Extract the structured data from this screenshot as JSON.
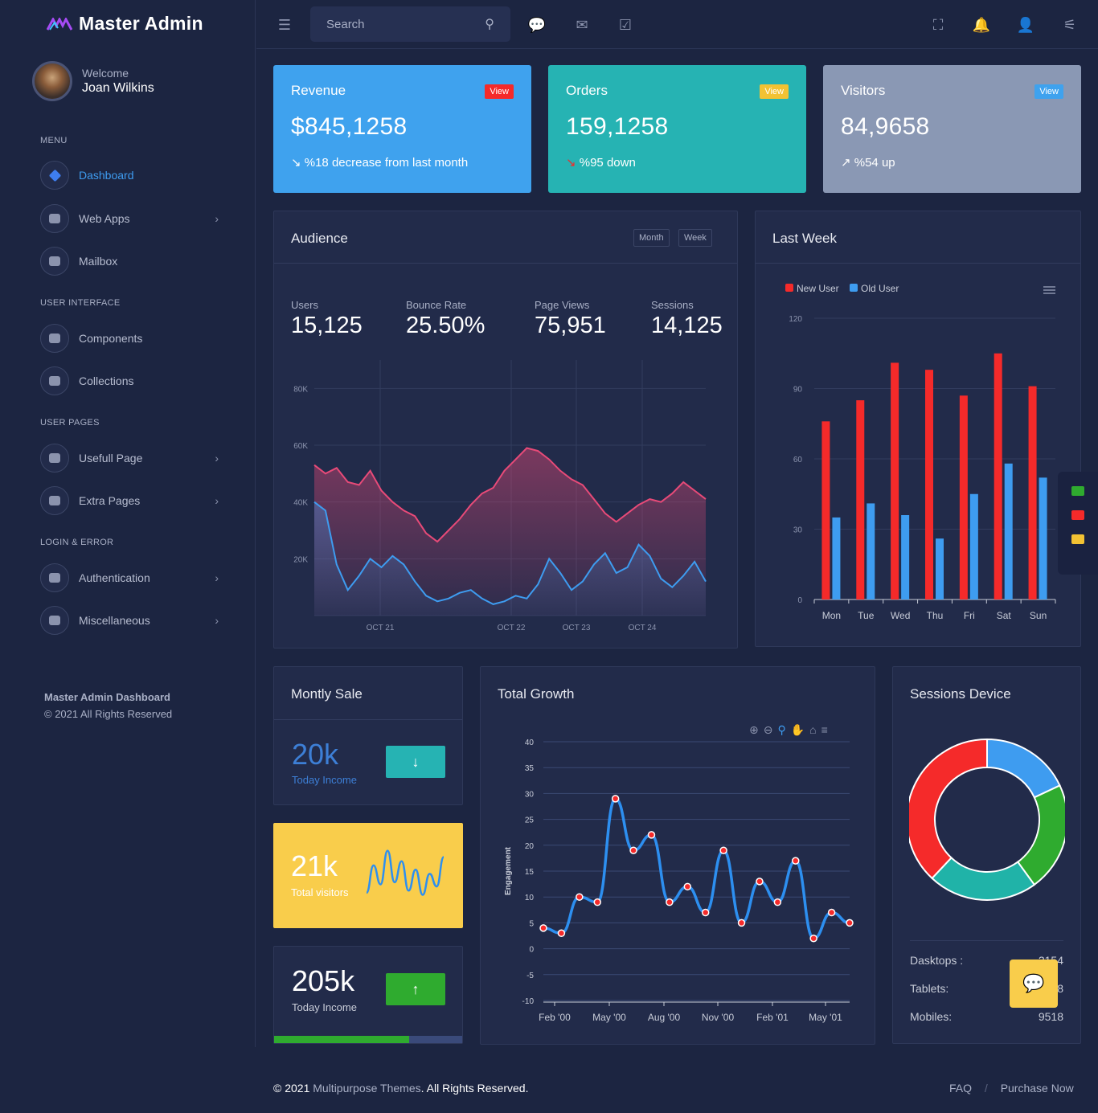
{
  "brand": {
    "name": "Master Admin"
  },
  "user": {
    "welcome": "Welcome",
    "name": "Joan Wilkins"
  },
  "sidebar": {
    "sections": [
      "MENU",
      "USER INTERFACE",
      "USER PAGES",
      "LOGIN & ERROR"
    ],
    "items": [
      {
        "label": "Dashboard",
        "icon": "layers-icon"
      },
      {
        "label": "Web Apps",
        "icon": "apps-icon"
      },
      {
        "label": "Mailbox",
        "icon": "mailbox-icon"
      },
      {
        "label": "Components",
        "icon": "components-icon"
      },
      {
        "label": "Collections",
        "icon": "collections-icon"
      },
      {
        "label": "Usefull Page",
        "icon": "users-icon"
      },
      {
        "label": "Extra Pages",
        "icon": "pages-icon"
      },
      {
        "label": "Authentication",
        "icon": "authentication-icon"
      },
      {
        "label": "Miscellaneous",
        "icon": "warning-icon"
      }
    ],
    "footer_title": "Master Admin Dashboard",
    "footer_copy": "© 2021 All Rights Reserved"
  },
  "search": {
    "placeholder": "Search"
  },
  "stats": [
    {
      "title": "Revenue",
      "badge": "View",
      "value": "$845,1258",
      "sub": "%18 decrease from last month",
      "color": "#3fa2ee",
      "badge_color": "#f52a2a"
    },
    {
      "title": "Orders",
      "badge": "View",
      "value": "159,1258",
      "sub": "%95 down",
      "color": "#26b3b3",
      "badge_color": "#f2c233"
    },
    {
      "title": "Visitors",
      "badge": "View",
      "value": "84,9658",
      "sub": "%54 up",
      "color": "#8a98b4",
      "badge_color": "#3fa2ee"
    }
  ],
  "audience": {
    "title": "Audience",
    "month_label": "Month",
    "week_label": "Week",
    "kpis": [
      {
        "label": "Users",
        "value": "15,125"
      },
      {
        "label": "Bounce Rate",
        "value": "25.50%"
      },
      {
        "label": "Page Views",
        "value": "75,951"
      },
      {
        "label": "Sessions",
        "value": "14,125"
      }
    ]
  },
  "last_week": {
    "title": "Last Week"
  },
  "monthly_sale": {
    "title": "Montly Sale",
    "a_value": "20k",
    "a_label": "Today Income",
    "b_value": "21k",
    "b_label": "Total visitors",
    "c_value": "205k",
    "c_label": "Today Income",
    "c_progress": 0.72
  },
  "total_growth": {
    "title": "Total Growth"
  },
  "sessions_device": {
    "title": "Sessions Device",
    "rows": [
      {
        "label": "Dasktops :",
        "value": "2154"
      },
      {
        "label": "Tablets:",
        "value": "3698"
      },
      {
        "label": "Mobiles:",
        "value": "9518"
      }
    ]
  },
  "footer": {
    "copy_prefix": "© 2021",
    "link": "Multipurpose Themes",
    "copy_suffix": ". All Rights Reserved.",
    "faq": "FAQ",
    "sep": "/",
    "purchase": "Purchase Now"
  },
  "chart_data": [
    {
      "type": "area",
      "x_tick_labels": [
        "OCT 21",
        "OCT 22",
        "OCT 23",
        "OCT 24"
      ],
      "y_tick_labels": [
        "20K",
        "40K",
        "60K",
        "80K"
      ],
      "ylim": [
        0,
        90000
      ],
      "series": [
        {
          "values": [
            53000,
            50000,
            52000,
            47000,
            46000,
            51000,
            44000,
            40000,
            37000,
            35000,
            29000,
            26000,
            30000,
            34000,
            39000,
            43000,
            45000,
            51000,
            55000,
            59000,
            58000,
            55000,
            51000,
            48000,
            46000,
            41000,
            36000,
            33000,
            36000,
            39000,
            41000,
            40000,
            43000,
            47000,
            44000,
            41000
          ],
          "color": "#e84a78"
        },
        {
          "values": [
            40000,
            37000,
            18000,
            9000,
            14000,
            20000,
            17000,
            21000,
            18000,
            12000,
            7000,
            5000,
            6000,
            8000,
            9000,
            6000,
            4000,
            5000,
            7000,
            6000,
            11000,
            20000,
            15000,
            9000,
            12000,
            18000,
            22000,
            15000,
            17000,
            25000,
            21000,
            13000,
            10000,
            14000,
            19000,
            12000
          ],
          "color": "#3e9cf0"
        }
      ]
    },
    {
      "type": "bar",
      "categories": [
        "Mon",
        "Tue",
        "Wed",
        "Thu",
        "Fri",
        "Sat",
        "Sun"
      ],
      "ylim": [
        0,
        120
      ],
      "y_ticks": [
        0,
        30,
        60,
        90,
        120
      ],
      "series": [
        {
          "name": "New User",
          "values": [
            76,
            85,
            101,
            98,
            87,
            105,
            91
          ],
          "color": "#f52a2a"
        },
        {
          "name": "Old User",
          "values": [
            35,
            41,
            36,
            26,
            45,
            58,
            52
          ],
          "color": "#3e9cf0"
        }
      ]
    },
    {
      "type": "line",
      "ylabel": "Engagement",
      "ylim": [
        -10,
        40
      ],
      "y_ticks": [
        40,
        35,
        30,
        25,
        20,
        15,
        10,
        5,
        0,
        -5,
        -10
      ],
      "x_tick_labels": [
        "Feb '00",
        "May '00",
        "Aug '00",
        "Nov '00",
        "Feb '01",
        "May '01"
      ],
      "series": [
        {
          "values": [
            4,
            3,
            10,
            9,
            29,
            19,
            22,
            9,
            12,
            7,
            19,
            5,
            13,
            9,
            17,
            2,
            7,
            5
          ],
          "color": "#2d8ff0"
        }
      ]
    },
    {
      "type": "pie",
      "slices": [
        {
          "value": 18,
          "color": "#3e9cf0"
        },
        {
          "value": 22,
          "color": "#2fab2f"
        },
        {
          "value": 22,
          "color": "#20b3a8"
        },
        {
          "value": 38,
          "color": "#f52a2a"
        }
      ]
    },
    {
      "type": "line",
      "series": [
        {
          "values": [
            5,
            18,
            9,
            25,
            10,
            20,
            6,
            16,
            4,
            14,
            8,
            22
          ],
          "color": "#2d8ff0"
        }
      ]
    }
  ]
}
